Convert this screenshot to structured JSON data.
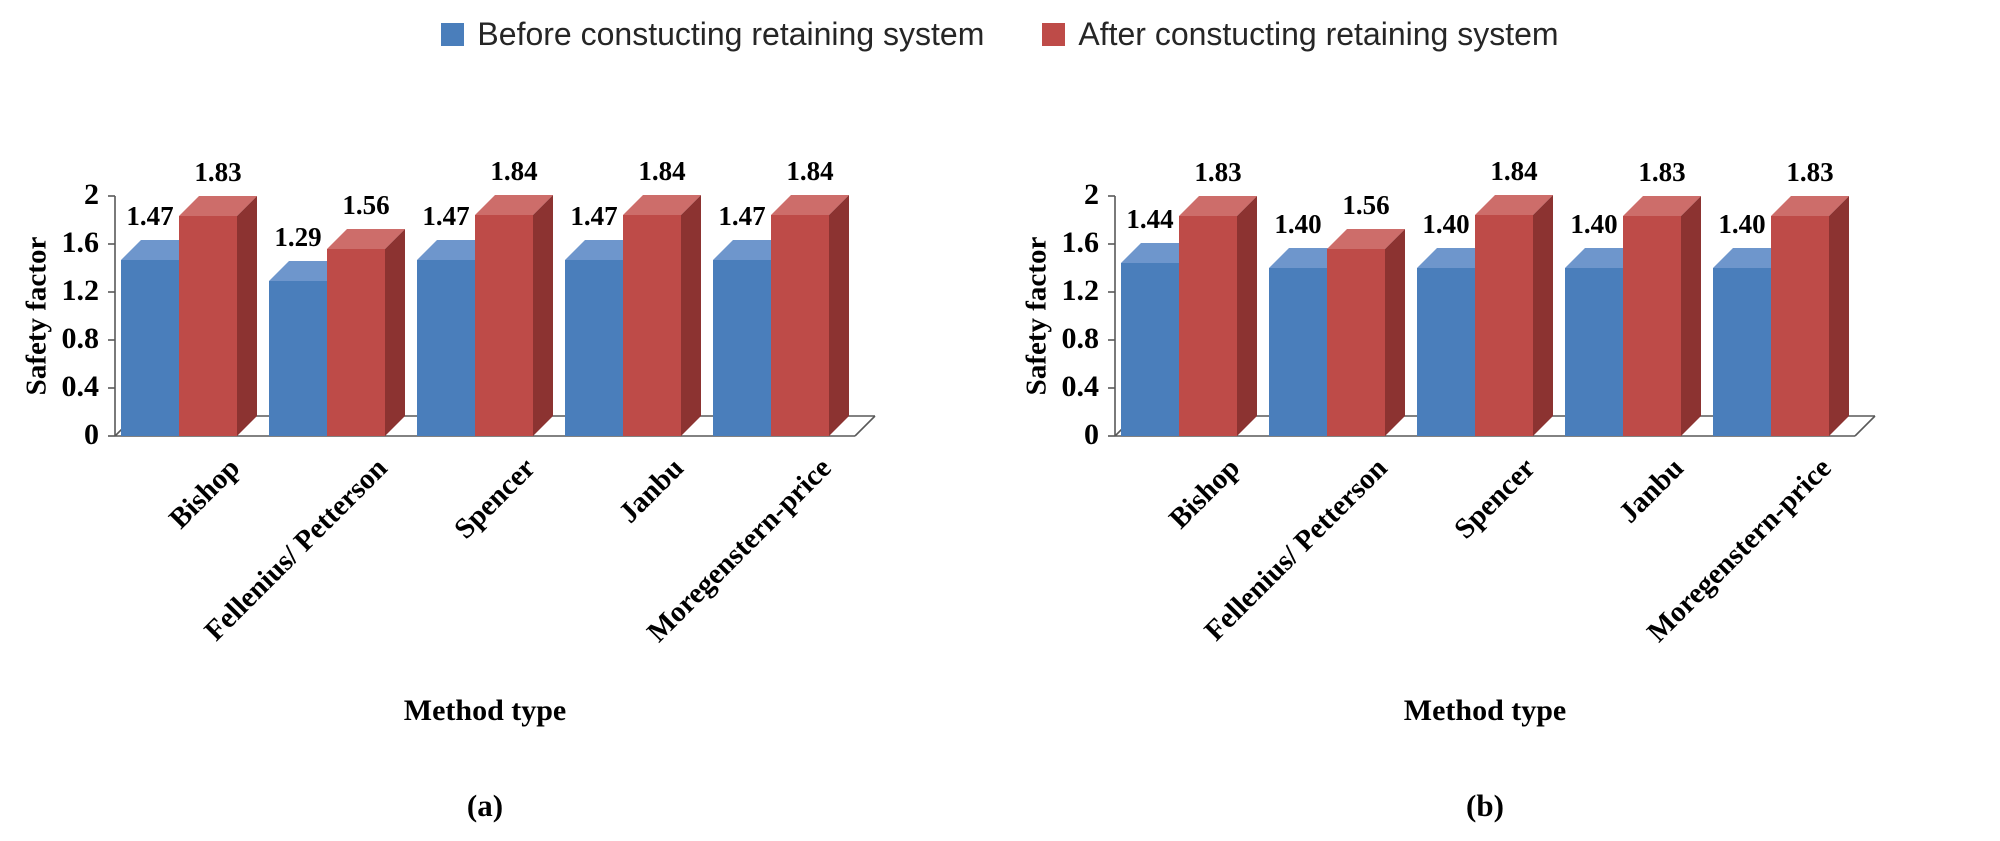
{
  "legend": {
    "items": [
      {
        "label": "Before constucting retaining system",
        "color": "#4A7EBB"
      },
      {
        "label": "After constucting retaining system",
        "color": "#BE4B48"
      }
    ]
  },
  "chart_data": [
    {
      "type": "bar",
      "projection": "3d",
      "caption": "(a)",
      "xlabel": "Method type",
      "ylabel": "Safety factor",
      "ylim": [
        0,
        2
      ],
      "ytick_labels": [
        "0",
        "0.4",
        "0.8",
        "1.2",
        "1.6",
        "2"
      ],
      "categories": [
        "Bishop",
        "Fellenius/ Petterson",
        "Spencer",
        "Janbu",
        "Moregenstern-price"
      ],
      "series": [
        {
          "name": "Before constucting retaining system",
          "values": [
            1.47,
            1.29,
            1.47,
            1.47,
            1.47
          ],
          "color_front": "#4A7EBB",
          "color_top": "#6E96CC",
          "color_side": "#31598C"
        },
        {
          "name": "After constucting retaining system",
          "values": [
            1.83,
            1.56,
            1.84,
            1.84,
            1.84
          ],
          "color_front": "#BE4B48",
          "color_top": "#CD6D6A",
          "color_side": "#8C3331"
        }
      ],
      "legend_position": "top",
      "grid": false
    },
    {
      "type": "bar",
      "projection": "3d",
      "caption": "(b)",
      "xlabel": "Method type",
      "ylabel": "Safety factor",
      "ylim": [
        0,
        2
      ],
      "ytick_labels": [
        "0",
        "0.4",
        "0.8",
        "1.2",
        "1.6",
        "2"
      ],
      "categories": [
        "Bishop",
        "Fellenius/ Petterson",
        "Spencer",
        "Janbu",
        "Moregenstern-price"
      ],
      "series": [
        {
          "name": "Before constucting retaining system",
          "values": [
            1.44,
            1.4,
            1.4,
            1.4,
            1.4
          ],
          "color_front": "#4A7EBB",
          "color_top": "#6E96CC",
          "color_side": "#31598C"
        },
        {
          "name": "After constucting retaining system",
          "values": [
            1.83,
            1.56,
            1.84,
            1.83,
            1.83
          ],
          "color_front": "#BE4B48",
          "color_top": "#CD6D6A",
          "color_side": "#8C3331"
        }
      ],
      "legend_position": "top",
      "grid": false
    }
  ]
}
